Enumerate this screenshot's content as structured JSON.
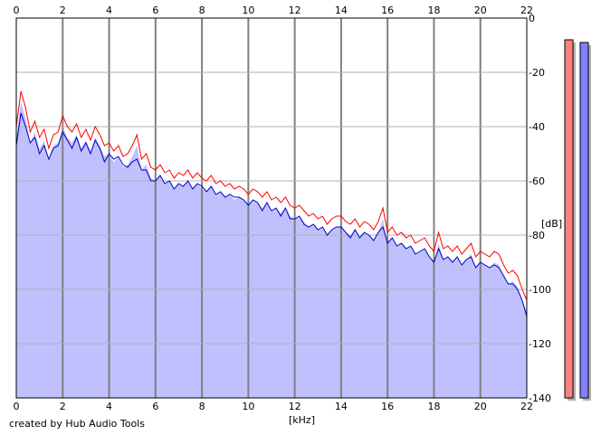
{
  "credit": "created by Hub Audio Tools",
  "chart_data": {
    "type": "area",
    "x_unit": "[kHz]",
    "y_unit": "[dB]",
    "xlim": [
      0,
      22
    ],
    "ylim": [
      -140,
      0
    ],
    "x_ticks": [
      0,
      2,
      4,
      6,
      8,
      10,
      12,
      14,
      16,
      18,
      20,
      22
    ],
    "y_ticks": [
      0,
      -20,
      -40,
      -60,
      -80,
      -100,
      -120,
      -140
    ],
    "grid": true,
    "colors": {
      "fill": "#c0c0ff",
      "channel_1": "#ff0000",
      "channel_2": "#0000c0",
      "meter_1": "#ff8080",
      "meter_2": "#8080ff"
    },
    "series": [
      {
        "color": "#ff0000",
        "x": [
          0,
          0.2,
          0.4,
          0.6,
          0.8,
          1,
          1.2,
          1.4,
          1.6,
          1.8,
          2,
          2.2,
          2.4,
          2.6,
          2.8,
          3,
          3.2,
          3.4,
          3.6,
          3.8,
          4,
          4.2,
          4.4,
          4.6,
          4.8,
          5,
          5.2,
          5.4,
          5.6,
          5.8,
          6,
          6.2,
          6.4,
          6.6,
          6.8,
          7,
          7.2,
          7.4,
          7.6,
          7.8,
          8,
          8.2,
          8.4,
          8.6,
          8.8,
          9,
          9.2,
          9.4,
          9.6,
          9.8,
          10,
          10.2,
          10.4,
          10.6,
          10.8,
          11,
          11.2,
          11.4,
          11.6,
          11.8,
          12,
          12.2,
          12.4,
          12.6,
          12.8,
          13,
          13.2,
          13.4,
          13.6,
          13.8,
          14,
          14.2,
          14.4,
          14.6,
          14.8,
          15,
          15.2,
          15.4,
          15.6,
          15.8,
          16,
          16.2,
          16.4,
          16.6,
          16.8,
          17,
          17.2,
          17.4,
          17.6,
          17.8,
          18,
          18.2,
          18.4,
          18.6,
          18.8,
          19,
          19.2,
          19.4,
          19.6,
          19.8,
          20,
          20.2,
          20.4,
          20.6,
          20.8,
          21,
          21.2,
          21.4,
          21.6,
          21.8,
          22
        ],
        "y": [
          -40,
          -27,
          -33,
          -42,
          -38,
          -44,
          -41,
          -48,
          -43,
          -42,
          -36,
          -40,
          -42,
          -39,
          -44,
          -41,
          -45,
          -40,
          -43,
          -47,
          -46,
          -49,
          -47,
          -51,
          -50,
          -47,
          -43,
          -52,
          -50,
          -55,
          -56,
          -54,
          -57,
          -56,
          -59,
          -57,
          -58,
          -56,
          -59,
          -57,
          -59,
          -60,
          -58,
          -61,
          -60,
          -62,
          -61,
          -63,
          -62,
          -63,
          -65,
          -63,
          -64,
          -66,
          -64,
          -67,
          -66,
          -68,
          -66,
          -69,
          -70,
          -69,
          -71,
          -73,
          -72,
          -74,
          -73,
          -76,
          -74,
          -73,
          -73,
          -75,
          -76,
          -74,
          -77,
          -75,
          -76,
          -78,
          -75,
          -70,
          -79,
          -77,
          -80,
          -79,
          -81,
          -80,
          -83,
          -82,
          -81,
          -84,
          -86,
          -79,
          -85,
          -84,
          -86,
          -84,
          -87,
          -85,
          -83,
          -88,
          -86,
          -87,
          -88,
          -86,
          -87,
          -91,
          -94,
          -93,
          -95,
          -100,
          -104
        ]
      },
      {
        "color": "#0000c0",
        "x": [
          0,
          0.2,
          0.4,
          0.6,
          0.8,
          1,
          1.2,
          1.4,
          1.6,
          1.8,
          2,
          2.2,
          2.4,
          2.6,
          2.8,
          3,
          3.2,
          3.4,
          3.6,
          3.8,
          4,
          4.2,
          4.4,
          4.6,
          4.8,
          5,
          5.2,
          5.4,
          5.6,
          5.8,
          6,
          6.2,
          6.4,
          6.6,
          6.8,
          7,
          7.2,
          7.4,
          7.6,
          7.8,
          8,
          8.2,
          8.4,
          8.6,
          8.8,
          9,
          9.2,
          9.4,
          9.6,
          9.8,
          10,
          10.2,
          10.4,
          10.6,
          10.8,
          11,
          11.2,
          11.4,
          11.6,
          11.8,
          12,
          12.2,
          12.4,
          12.6,
          12.8,
          13,
          13.2,
          13.4,
          13.6,
          13.8,
          14,
          14.2,
          14.4,
          14.6,
          14.8,
          15,
          15.2,
          15.4,
          15.6,
          15.8,
          16,
          16.2,
          16.4,
          16.6,
          16.8,
          17,
          17.2,
          17.4,
          17.6,
          17.8,
          18,
          18.2,
          18.4,
          18.6,
          18.8,
          19,
          19.2,
          19.4,
          19.6,
          19.8,
          20,
          20.2,
          20.4,
          20.6,
          20.8,
          21,
          21.2,
          21.4,
          21.6,
          21.8,
          22
        ],
        "y": [
          -47,
          -35,
          -40,
          -46,
          -44,
          -50,
          -47,
          -52,
          -48,
          -47,
          -42,
          -45,
          -48,
          -44,
          -49,
          -46,
          -50,
          -45,
          -48,
          -53,
          -50,
          -52,
          -51,
          -54,
          -55,
          -53,
          -52,
          -56,
          -56,
          -60,
          -60,
          -58,
          -61,
          -60,
          -63,
          -61,
          -62,
          -60,
          -63,
          -61,
          -62,
          -64,
          -62,
          -65,
          -64,
          -66,
          -65,
          -66,
          -66,
          -67,
          -69,
          -67,
          -68,
          -71,
          -68,
          -71,
          -70,
          -73,
          -70,
          -74,
          -74,
          -73,
          -76,
          -77,
          -76,
          -78,
          -77,
          -80,
          -78,
          -77,
          -77,
          -79,
          -81,
          -78,
          -81,
          -79,
          -80,
          -82,
          -79,
          -77,
          -83,
          -81,
          -84,
          -83,
          -85,
          -84,
          -87,
          -86,
          -85,
          -88,
          -90,
          -85,
          -89,
          -88,
          -90,
          -88,
          -91,
          -89,
          -88,
          -92,
          -90,
          -91,
          -92,
          -91,
          -92,
          -95,
          -98,
          -98,
          -100,
          -104,
          -110
        ]
      }
    ],
    "meters": [
      {
        "color": "#ff8080",
        "top_db": -8
      },
      {
        "color": "#8080ff",
        "top_db": -9
      }
    ]
  }
}
